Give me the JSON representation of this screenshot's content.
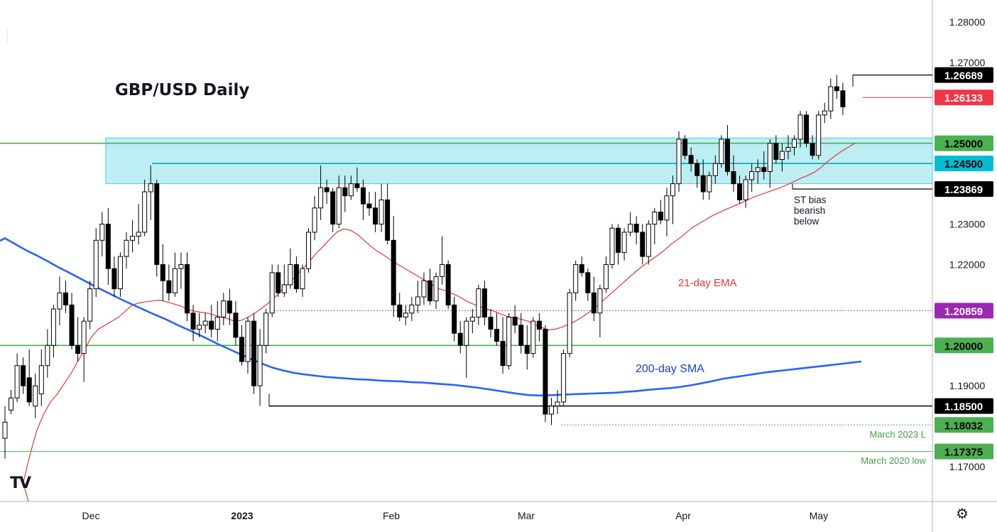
{
  "chart_title": "GBP/USD Daily",
  "logo_text": "TV",
  "settings_icon": "gear-icon",
  "chart_data": {
    "type": "candlestick",
    "title": "GBP/USD Daily",
    "ylim": [
      1.164,
      1.293
    ],
    "y_ticks": [
      "1.28000",
      "1.27000",
      "1.23000",
      "1.22000",
      "1.19000",
      "1.17000"
    ],
    "x_ticks": [
      "Dec",
      "2023",
      "Feb",
      "Mar",
      "Apr",
      "May"
    ],
    "grid": false,
    "colors": {
      "up": "#ffffff",
      "down": "#000000",
      "ema": "#e53935",
      "sma": "#2962ff",
      "zone": "#b2ebf2",
      "green_line": "#4caf50",
      "teal_line": "#00acc1"
    },
    "zone": {
      "low": 1.24,
      "high": 1.2513
    },
    "price_levels": [
      {
        "label": "1.26689",
        "value": 1.26689,
        "bg": "#000000",
        "fg": "#ffffff",
        "line": "#000000"
      },
      {
        "label": "1.26133",
        "value": 1.26133,
        "bg": "#f23645",
        "fg": "#ffffff",
        "line": "#f23645"
      },
      {
        "label": "1.25000",
        "value": 1.25,
        "bg": "#4caf50",
        "fg": "#000000",
        "line": "#4caf50"
      },
      {
        "label": "1.24500",
        "value": 1.245,
        "bg": "#00bcd4",
        "fg": "#000000",
        "line": "#00acc1"
      },
      {
        "label": "1.23869",
        "value": 1.23869,
        "bg": "#000000",
        "fg": "#ffffff",
        "line": "#000000"
      },
      {
        "label": "1.20859",
        "value": 1.20859,
        "bg": "#9c27b0",
        "fg": "#ffffff",
        "line": "#ab47bc"
      },
      {
        "label": "1.20000",
        "value": 1.2,
        "bg": "#4caf50",
        "fg": "#000000",
        "line": "#4caf50"
      },
      {
        "label": "1.18500",
        "value": 1.185,
        "bg": "#000000",
        "fg": "#ffffff",
        "line": "#000000"
      },
      {
        "label": "1.18032",
        "value": 1.18032,
        "bg": "#4caf50",
        "fg": "#000000",
        "line": "#4caf50"
      },
      {
        "label": "1.17375",
        "value": 1.17375,
        "bg": "#4caf50",
        "fg": "#000000",
        "line": "#4caf50"
      }
    ],
    "annotations": {
      "st_bias": [
        "ST bias",
        "bearish",
        "below"
      ],
      "ema_label": "21-day EMA",
      "sma_label": "200-day SMA",
      "march_2023_low": "March 2023 L",
      "march_2020_low": "March 2020 low"
    },
    "candles": [
      [
        1.177,
        1.185,
        1.172,
        1.181
      ],
      [
        1.184,
        1.189,
        1.183,
        1.187
      ],
      [
        1.187,
        1.198,
        1.186,
        1.195
      ],
      [
        1.195,
        1.197,
        1.188,
        1.19
      ],
      [
        1.192,
        1.199,
        1.185,
        1.186
      ],
      [
        1.185,
        1.193,
        1.182,
        1.19
      ],
      [
        1.188,
        1.199,
        1.185,
        1.195
      ],
      [
        1.195,
        1.204,
        1.192,
        1.2
      ],
      [
        1.2,
        1.21,
        1.197,
        1.209
      ],
      [
        1.209,
        1.217,
        1.205,
        1.213
      ],
      [
        1.213,
        1.216,
        1.208,
        1.21
      ],
      [
        1.21,
        1.213,
        1.199,
        1.2
      ],
      [
        1.2,
        1.207,
        1.196,
        1.198
      ],
      [
        1.198,
        1.207,
        1.191,
        1.206
      ],
      [
        1.206,
        1.216,
        1.204,
        1.214
      ],
      [
        1.214,
        1.229,
        1.212,
        1.226
      ],
      [
        1.226,
        1.233,
        1.222,
        1.23
      ],
      [
        1.23,
        1.234,
        1.215,
        1.219
      ],
      [
        1.219,
        1.222,
        1.212,
        1.214
      ],
      [
        1.214,
        1.223,
        1.212,
        1.222
      ],
      [
        1.222,
        1.228,
        1.219,
        1.226
      ],
      [
        1.226,
        1.231,
        1.223,
        1.227
      ],
      [
        1.227,
        1.235,
        1.225,
        1.228
      ],
      [
        1.228,
        1.241,
        1.227,
        1.238
      ],
      [
        1.238,
        1.2445,
        1.231,
        1.24
      ],
      [
        1.24,
        1.241,
        1.217,
        1.22
      ],
      [
        1.22,
        1.225,
        1.211,
        1.216
      ],
      [
        1.216,
        1.22,
        1.211,
        1.213
      ],
      [
        1.213,
        1.223,
        1.212,
        1.219
      ],
      [
        1.219,
        1.223,
        1.214,
        1.22
      ],
      [
        1.22,
        1.223,
        1.206,
        1.208
      ],
      [
        1.208,
        1.21,
        1.201,
        1.204
      ],
      [
        1.204,
        1.208,
        1.202,
        1.205
      ],
      [
        1.205,
        1.208,
        1.203,
        1.206
      ],
      [
        1.206,
        1.21,
        1.202,
        1.204
      ],
      [
        1.204,
        1.211,
        1.201,
        1.207
      ],
      [
        1.207,
        1.213,
        1.205,
        1.211
      ],
      [
        1.211,
        1.214,
        1.205,
        1.208
      ],
      [
        1.208,
        1.211,
        1.2,
        1.202
      ],
      [
        1.202,
        1.205,
        1.195,
        1.196
      ],
      [
        1.196,
        1.207,
        1.193,
        1.206
      ],
      [
        1.206,
        1.208,
        1.188,
        1.19
      ],
      [
        1.19,
        1.204,
        1.185,
        1.2
      ],
      [
        1.2,
        1.209,
        1.198,
        1.208
      ],
      [
        1.208,
        1.22,
        1.207,
        1.218
      ],
      [
        1.218,
        1.22,
        1.212,
        1.213
      ],
      [
        1.213,
        1.22,
        1.212,
        1.215
      ],
      [
        1.215,
        1.224,
        1.214,
        1.22
      ],
      [
        1.22,
        1.222,
        1.213,
        1.214
      ],
      [
        1.214,
        1.22,
        1.212,
        1.219
      ],
      [
        1.219,
        1.229,
        1.218,
        1.228
      ],
      [
        1.228,
        1.237,
        1.226,
        1.234
      ],
      [
        1.234,
        1.2445,
        1.231,
        1.239
      ],
      [
        1.239,
        1.241,
        1.235,
        1.238
      ],
      [
        1.238,
        1.239,
        1.228,
        1.23
      ],
      [
        1.23,
        1.242,
        1.229,
        1.239
      ],
      [
        1.239,
        1.242,
        1.233,
        1.237
      ],
      [
        1.237,
        1.242,
        1.236,
        1.24
      ],
      [
        1.24,
        1.244,
        1.238,
        1.239
      ],
      [
        1.239,
        1.241,
        1.231,
        1.235
      ],
      [
        1.235,
        1.238,
        1.232,
        1.234
      ],
      [
        1.234,
        1.238,
        1.228,
        1.23
      ],
      [
        1.23,
        1.24,
        1.228,
        1.236
      ],
      [
        1.236,
        1.24,
        1.225,
        1.226
      ],
      [
        1.226,
        1.232,
        1.207,
        1.21
      ],
      [
        1.21,
        1.213,
        1.206,
        1.207
      ],
      [
        1.207,
        1.21,
        1.205,
        1.208
      ],
      [
        1.208,
        1.212,
        1.206,
        1.21
      ],
      [
        1.21,
        1.216,
        1.208,
        1.212
      ],
      [
        1.212,
        1.218,
        1.21,
        1.216
      ],
      [
        1.216,
        1.219,
        1.21,
        1.211
      ],
      [
        1.211,
        1.218,
        1.209,
        1.217
      ],
      [
        1.217,
        1.227,
        1.215,
        1.22
      ],
      [
        1.22,
        1.221,
        1.209,
        1.21
      ],
      [
        1.21,
        1.212,
        1.201,
        1.203
      ],
      [
        1.203,
        1.206,
        1.198,
        1.2
      ],
      [
        1.2,
        1.207,
        1.192,
        1.206
      ],
      [
        1.206,
        1.209,
        1.203,
        1.207
      ],
      [
        1.207,
        1.215,
        1.205,
        1.214
      ],
      [
        1.214,
        1.216,
        1.205,
        1.207
      ],
      [
        1.207,
        1.209,
        1.202,
        1.204
      ],
      [
        1.204,
        1.208,
        1.2,
        1.201
      ],
      [
        1.201,
        1.207,
        1.193,
        1.195
      ],
      [
        1.195,
        1.208,
        1.194,
        1.207
      ],
      [
        1.207,
        1.21,
        1.203,
        1.205
      ],
      [
        1.205,
        1.208,
        1.198,
        1.2
      ],
      [
        1.2,
        1.205,
        1.194,
        1.198
      ],
      [
        1.198,
        1.207,
        1.197,
        1.206
      ],
      [
        1.206,
        1.208,
        1.201,
        1.204
      ],
      [
        1.204,
        1.205,
        1.181,
        1.183
      ],
      [
        1.183,
        1.187,
        1.1803,
        1.185
      ],
      [
        1.185,
        1.189,
        1.183,
        1.186
      ],
      [
        1.186,
        1.199,
        1.185,
        1.198
      ],
      [
        1.198,
        1.214,
        1.197,
        1.213
      ],
      [
        1.213,
        1.221,
        1.211,
        1.22
      ],
      [
        1.22,
        1.222,
        1.217,
        1.218
      ],
      [
        1.218,
        1.219,
        1.211,
        1.213
      ],
      [
        1.213,
        1.217,
        1.206,
        1.208
      ],
      [
        1.208,
        1.215,
        1.202,
        1.214
      ],
      [
        1.214,
        1.222,
        1.213,
        1.22
      ],
      [
        1.22,
        1.23,
        1.219,
        1.229
      ],
      [
        1.229,
        1.23,
        1.22,
        1.223
      ],
      [
        1.223,
        1.229,
        1.221,
        1.228
      ],
      [
        1.228,
        1.233,
        1.227,
        1.23
      ],
      [
        1.23,
        1.232,
        1.225,
        1.228
      ],
      [
        1.228,
        1.23,
        1.22,
        1.222
      ],
      [
        1.222,
        1.231,
        1.22,
        1.23
      ],
      [
        1.23,
        1.234,
        1.225,
        1.233
      ],
      [
        1.233,
        1.236,
        1.23,
        1.231
      ],
      [
        1.231,
        1.239,
        1.227,
        1.237
      ],
      [
        1.237,
        1.242,
        1.23,
        1.24
      ],
      [
        1.24,
        1.253,
        1.238,
        1.251
      ],
      [
        1.251,
        1.252,
        1.246,
        1.247
      ],
      [
        1.247,
        1.249,
        1.243,
        1.245
      ],
      [
        1.245,
        1.246,
        1.239,
        1.242
      ],
      [
        1.242,
        1.246,
        1.236,
        1.238
      ],
      [
        1.238,
        1.243,
        1.236,
        1.242
      ],
      [
        1.242,
        1.247,
        1.24,
        1.245
      ],
      [
        1.245,
        1.252,
        1.244,
        1.251
      ],
      [
        1.251,
        1.2545,
        1.242,
        1.243
      ],
      [
        1.243,
        1.247,
        1.238,
        1.24
      ],
      [
        1.24,
        1.242,
        1.235,
        1.236
      ],
      [
        1.236,
        1.242,
        1.234,
        1.241
      ],
      [
        1.241,
        1.245,
        1.238,
        1.243
      ],
      [
        1.243,
        1.246,
        1.24,
        1.244
      ],
      [
        1.244,
        1.248,
        1.241,
        1.243
      ],
      [
        1.243,
        1.251,
        1.239,
        1.25
      ],
      [
        1.25,
        1.252,
        1.245,
        1.246
      ],
      [
        1.246,
        1.25,
        1.243,
        1.248
      ],
      [
        1.248,
        1.252,
        1.246,
        1.249
      ],
      [
        1.249,
        1.252,
        1.247,
        1.251
      ],
      [
        1.251,
        1.258,
        1.249,
        1.257
      ],
      [
        1.257,
        1.258,
        1.249,
        1.25
      ],
      [
        1.25,
        1.252,
        1.246,
        1.247
      ],
      [
        1.247,
        1.258,
        1.246,
        1.257
      ],
      [
        1.257,
        1.26,
        1.255,
        1.258
      ],
      [
        1.258,
        1.266,
        1.256,
        1.264
      ],
      [
        1.264,
        1.2669,
        1.261,
        1.263
      ],
      [
        1.263,
        1.265,
        1.257,
        1.259
      ]
    ],
    "ema_21": [
      1.166,
      1.173,
      1.179,
      1.183,
      1.186,
      1.188,
      1.1905,
      1.193,
      1.196,
      1.199,
      1.202,
      1.204,
      1.205,
      1.206,
      1.207,
      1.2085,
      1.21,
      1.2105,
      1.2108,
      1.211,
      1.2112,
      1.2108,
      1.2103,
      1.2098,
      1.209,
      1.2085,
      1.2082,
      1.208,
      1.2075,
      1.207,
      1.2066,
      1.206,
      1.2062,
      1.207,
      1.208,
      1.2092,
      1.2105,
      1.212,
      1.2138,
      1.2155,
      1.2172,
      1.219,
      1.2208,
      1.2228,
      1.2245,
      1.2263,
      1.228,
      1.2288,
      1.2285,
      1.2275,
      1.226,
      1.2245,
      1.2232,
      1.2222,
      1.221,
      1.22,
      1.219,
      1.218,
      1.217,
      1.216,
      1.215,
      1.214,
      1.2135,
      1.2128,
      1.212,
      1.211,
      1.2102,
      1.2096,
      1.209,
      1.2085,
      1.2078,
      1.2072,
      1.2068,
      1.2065,
      1.206,
      1.2052,
      1.2045,
      1.2038,
      1.204,
      1.2045,
      1.2052,
      1.206,
      1.207,
      1.2082,
      1.2095,
      1.211,
      1.2125,
      1.214,
      1.2155,
      1.217,
      1.2185,
      1.2198,
      1.221,
      1.2222,
      1.2235,
      1.225,
      1.2262,
      1.2275,
      1.229,
      1.23,
      1.231,
      1.232,
      1.2328,
      1.2336,
      1.2343,
      1.235,
      1.2358,
      1.2366,
      1.2372,
      1.2378,
      1.2384,
      1.239,
      1.2397,
      1.2405,
      1.2413,
      1.242,
      1.2428,
      1.244,
      1.2455,
      1.2468,
      1.248,
      1.249,
      1.25
    ],
    "sma_200": [
      1.2265,
      1.225,
      1.2235,
      1.2222,
      1.2208,
      1.2193,
      1.218,
      1.2166,
      1.2152,
      1.2138,
      1.2125,
      1.2112,
      1.21,
      1.2088,
      1.2076,
      1.2065,
      1.2052,
      1.204,
      1.2028,
      1.2015,
      1.2002,
      1.199,
      1.1978,
      1.1966,
      1.1955,
      1.1945,
      1.1938,
      1.1932,
      1.1928,
      1.1925,
      1.1922,
      1.192,
      1.1918,
      1.1916,
      1.1915,
      1.1913,
      1.1912,
      1.1911,
      1.1909,
      1.1908,
      1.1906,
      1.1904,
      1.1902,
      1.1899,
      1.1896,
      1.1892,
      1.1888,
      1.1884,
      1.188,
      1.1877,
      1.1876,
      1.1877,
      1.1878,
      1.1879,
      1.188,
      1.1881,
      1.1882,
      1.1883,
      1.1885,
      1.1887,
      1.189,
      1.1892,
      1.1894,
      1.1897,
      1.1901,
      1.1906,
      1.1911,
      1.1917,
      1.1921,
      1.1925,
      1.1929,
      1.1933,
      1.1936,
      1.1939,
      1.1942,
      1.1945,
      1.1948,
      1.1951,
      1.1954,
      1.1957,
      1.196
    ]
  }
}
